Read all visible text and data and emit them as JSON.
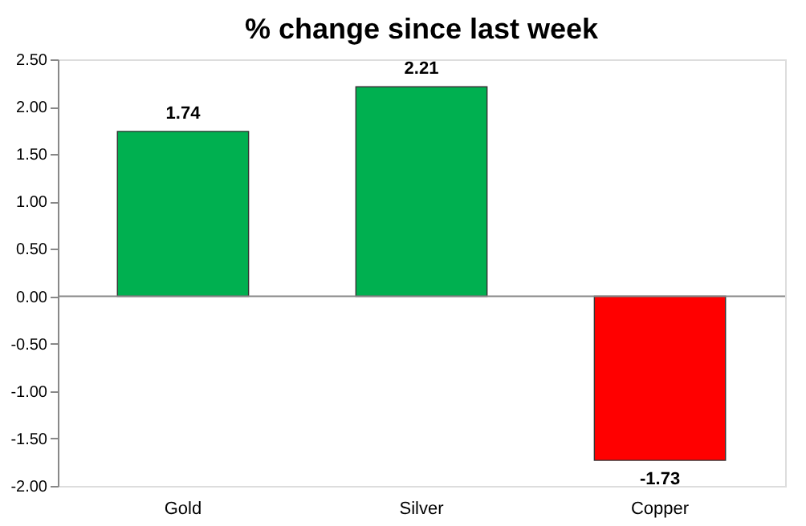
{
  "chart_data": {
    "type": "bar",
    "title": "% change since last week",
    "categories": [
      "Gold",
      "Silver",
      "Copper"
    ],
    "values": [
      1.74,
      2.21,
      -1.73
    ],
    "colors": [
      "#00b050",
      "#00b050",
      "#ff0000"
    ],
    "ylim": [
      -2.0,
      2.5
    ],
    "yticks": [
      {
        "value": -2.0,
        "label": "-2.00"
      },
      {
        "value": -1.5,
        "label": "-1.50"
      },
      {
        "value": -1.0,
        "label": "-1.00"
      },
      {
        "value": -0.5,
        "label": "-0.50"
      },
      {
        "value": 0,
        "label": "0.00"
      },
      {
        "value": 0.5,
        "label": "0.50"
      },
      {
        "value": 1.0,
        "label": "1.00"
      },
      {
        "value": 1.5,
        "label": "1.50"
      },
      {
        "value": 2.0,
        "label": "2.00"
      },
      {
        "value": 2.5,
        "label": "2.50"
      }
    ],
    "data_labels": true
  }
}
